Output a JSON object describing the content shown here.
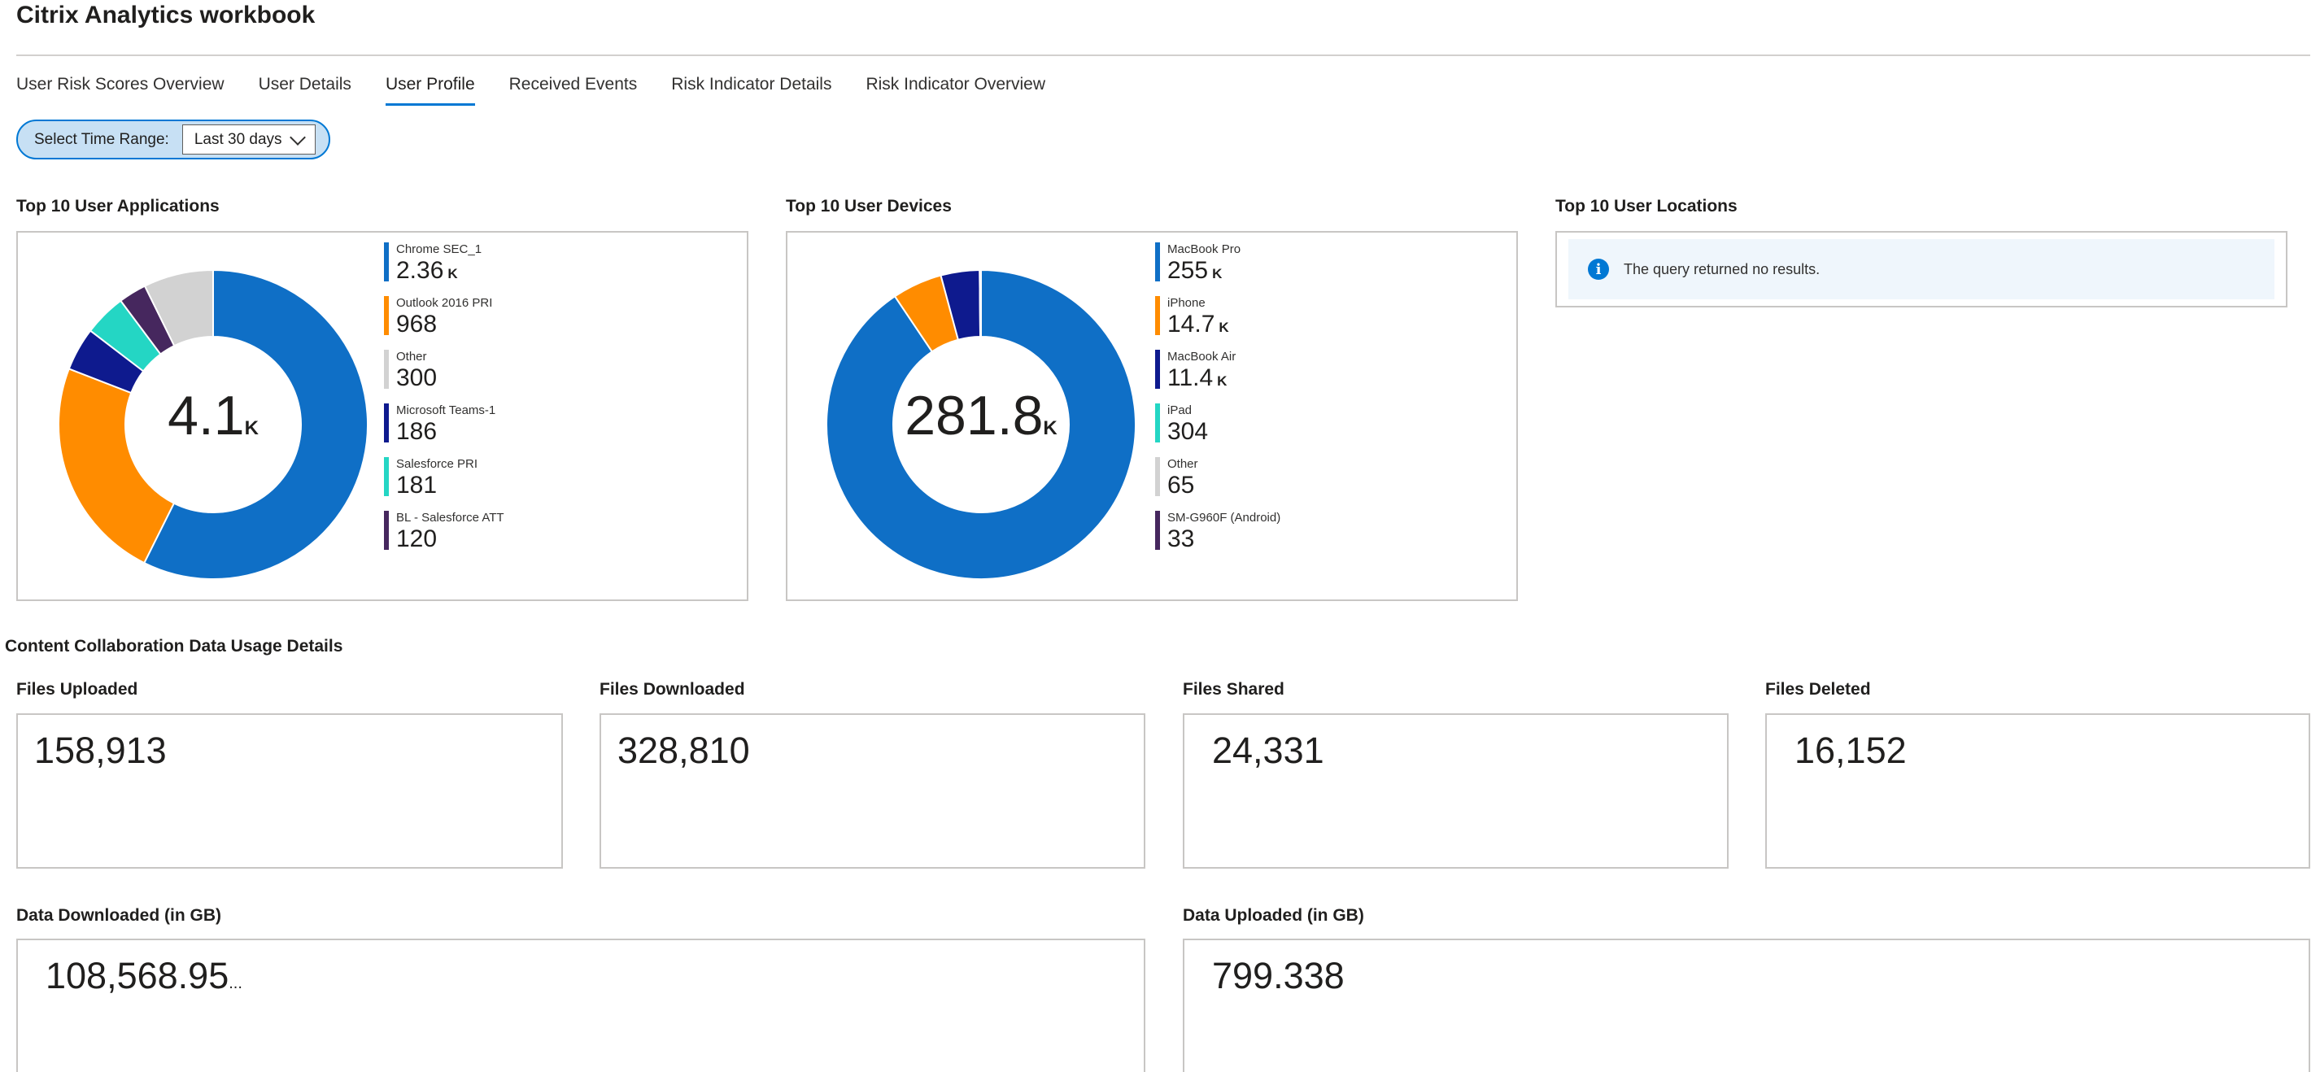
{
  "header": {
    "title": "Citrix Analytics workbook"
  },
  "tabs": [
    {
      "label": "User Risk Scores Overview",
      "active": false
    },
    {
      "label": "User Details",
      "active": false
    },
    {
      "label": "User Profile",
      "active": true
    },
    {
      "label": "Received Events",
      "active": false
    },
    {
      "label": "Risk Indicator Details",
      "active": false
    },
    {
      "label": "Risk Indicator Overview",
      "active": false
    }
  ],
  "time_range": {
    "label": "Select Time Range:",
    "value": "Last 30 days"
  },
  "applications": {
    "title": "Top 10 User Applications",
    "total": "4.1",
    "total_unit": "K",
    "legend": [
      {
        "name": "Chrome SEC_1",
        "value": "2.36",
        "unit": "K",
        "color": "#0f6fc6"
      },
      {
        "name": "Outlook 2016 PRI",
        "value": "968",
        "unit": "",
        "color": "#ff8c00"
      },
      {
        "name": "Other",
        "value": "300",
        "unit": "",
        "color": "#d2d2d2"
      },
      {
        "name": "Microsoft Teams-1",
        "value": "186",
        "unit": "",
        "color": "#0e1a8e"
      },
      {
        "name": "Salesforce PRI",
        "value": "181",
        "unit": "",
        "color": "#24d6c4"
      },
      {
        "name": "BL - Salesforce ATT",
        "value": "120",
        "unit": "",
        "color": "#46275e"
      }
    ]
  },
  "devices": {
    "title": "Top 10 User Devices",
    "total": "281.8",
    "total_unit": "K",
    "legend": [
      {
        "name": "MacBook Pro",
        "value": "255",
        "unit": "K",
        "color": "#0f6fc6"
      },
      {
        "name": "iPhone",
        "value": "14.7",
        "unit": "K",
        "color": "#ff8c00"
      },
      {
        "name": "MacBook Air",
        "value": "11.4",
        "unit": "K",
        "color": "#0e1a8e"
      },
      {
        "name": "iPad",
        "value": "304",
        "unit": "",
        "color": "#24d6c4"
      },
      {
        "name": "Other",
        "value": "65",
        "unit": "",
        "color": "#d2d2d2"
      },
      {
        "name": "SM-G960F (Android)",
        "value": "33",
        "unit": "",
        "color": "#46275e"
      }
    ]
  },
  "locations": {
    "title": "Top 10 User Locations",
    "message": "The query returned no results."
  },
  "collab": {
    "title": "Content Collaboration Data Usage Details",
    "files_uploaded": {
      "label": "Files Uploaded",
      "value": "158,913"
    },
    "files_downloaded": {
      "label": "Files Downloaded",
      "value": "328,810"
    },
    "files_shared": {
      "label": "Files Shared",
      "value": "24,331"
    },
    "files_deleted": {
      "label": "Files Deleted",
      "value": "16,152"
    },
    "data_downloaded": {
      "label": "Data Downloaded (in GB)",
      "value": "108,568.95",
      "suffix": "..."
    },
    "data_uploaded": {
      "label": "Data Uploaded (in GB)",
      "value": "799.338"
    }
  },
  "chart_data": [
    {
      "type": "pie",
      "title": "Top 10 User Applications",
      "categories": [
        "Chrome SEC_1",
        "Outlook 2016 PRI",
        "Other",
        "Microsoft Teams-1",
        "Salesforce PRI",
        "BL - Salesforce ATT"
      ],
      "values": [
        2360,
        968,
        300,
        186,
        181,
        120
      ],
      "colors": [
        "#0f6fc6",
        "#ff8c00",
        "#d2d2d2",
        "#0e1a8e",
        "#24d6c4",
        "#46275e"
      ],
      "order": [
        0,
        1,
        3,
        4,
        5,
        2
      ]
    },
    {
      "type": "pie",
      "title": "Top 10 User Devices",
      "categories": [
        "MacBook Pro",
        "iPhone",
        "MacBook Air",
        "iPad",
        "Other",
        "SM-G960F (Android)"
      ],
      "values": [
        255000,
        14700,
        11400,
        304,
        65,
        33
      ],
      "colors": [
        "#0f6fc6",
        "#ff8c00",
        "#0e1a8e",
        "#24d6c4",
        "#d2d2d2",
        "#46275e"
      ],
      "order": [
        0,
        1,
        2,
        3,
        4,
        5
      ]
    }
  ]
}
